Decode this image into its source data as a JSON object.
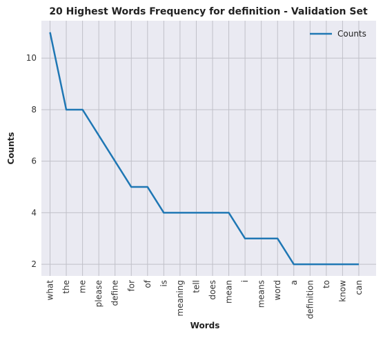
{
  "chart_data": {
    "type": "line",
    "title": "20 Highest Words Frequency for definition - Validation Set",
    "xlabel": "Words",
    "ylabel": "Counts",
    "categories": [
      "what",
      "the",
      "me",
      "please",
      "define",
      "for",
      "of",
      "is",
      "meaning",
      "tell",
      "does",
      "mean",
      "i",
      "means",
      "word",
      "a",
      "definition",
      "to",
      "know",
      "can"
    ],
    "series": [
      {
        "name": "Counts",
        "values": [
          11,
          8,
          8,
          7,
          6,
          5,
          5,
          4,
          4,
          4,
          4,
          4,
          3,
          3,
          3,
          2,
          2,
          2,
          2,
          2
        ],
        "color": "#1f77b4"
      }
    ],
    "yticks": [
      2,
      4,
      6,
      8,
      10
    ],
    "ylim": [
      1.55,
      11.45
    ],
    "grid": true,
    "legend_position": "top-right",
    "colors": {
      "background": "#eaeaf2",
      "grid": "#c0c0c8",
      "line": "#1f77b4"
    }
  }
}
